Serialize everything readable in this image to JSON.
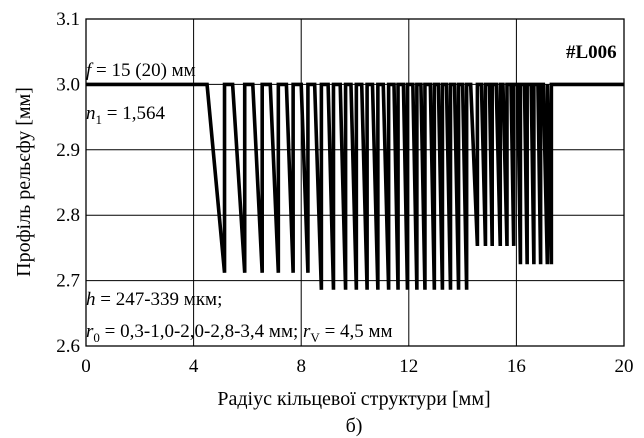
{
  "chart_data": {
    "type": "line",
    "xlabel": "Радіус кільцевої структури [мм]",
    "ylabel": "Профіль рельєфу [мм]",
    "caption": "б)",
    "xlim": [
      0,
      20
    ],
    "ylim": [
      2.6,
      3.1
    ],
    "xticks": [
      0,
      4,
      8,
      12,
      16,
      20
    ],
    "yticks": [
      2.6,
      2.7,
      2.8,
      2.9,
      3.0,
      3.1
    ],
    "ytick_labels": [
      "2.6",
      "2.7",
      "2.8",
      "2.9",
      "3.0",
      "3.1"
    ],
    "grid": true,
    "label_tag": "#L006",
    "annotations": {
      "focal": {
        "sym": "f",
        "text": " = 15 (20) мм"
      },
      "index": {
        "sym": "n",
        "sub": "1",
        "text": " = 1,564"
      },
      "height": {
        "sym": "h",
        "text": " = 247-339 мкм;"
      },
      "radii": {
        "sym": "r",
        "sub": "0",
        "text": " = 0,3-1,0-2,0-2,8-3,4 мм; ",
        "sym2": "r",
        "sub2": "V",
        "text2": " = 4,5 мм"
      }
    },
    "series": [
      {
        "x": [
          0,
          4.5,
          5.15,
          5.15,
          5.45,
          5.9,
          5.9,
          6.2,
          6.55,
          6.55,
          6.85,
          7.15,
          7.15,
          7.45,
          7.7,
          7.7,
          8.0,
          8.25,
          8.25,
          8.5,
          8.75,
          8.75,
          9.0,
          9.2,
          9.2,
          9.45,
          9.65,
          9.65,
          9.85,
          10.05,
          10.05,
          10.25,
          10.45,
          10.45,
          10.65,
          10.85,
          10.85,
          11.05,
          11.25,
          11.25,
          11.45,
          11.6,
          11.6,
          11.8,
          11.95,
          11.95,
          12.15,
          12.3,
          12.3,
          12.45,
          12.6,
          12.6,
          12.8,
          12.95,
          12.95,
          13.1,
          13.25,
          13.25,
          13.4,
          13.55,
          13.55,
          13.7,
          13.85,
          13.85,
          14.0,
          14.15,
          14.15,
          14.3,
          14.55,
          14.55,
          14.7,
          14.85,
          14.85,
          15.0,
          15.1,
          15.1,
          15.25,
          15.4,
          15.4,
          15.5,
          15.65,
          15.65,
          15.8,
          15.9,
          15.9,
          16.05,
          16.15,
          16.15,
          16.3,
          16.4,
          16.4,
          16.55,
          16.65,
          16.65,
          16.8,
          16.9,
          16.9,
          17.0,
          17.15,
          17.15,
          17.3,
          17.3,
          20
        ],
        "y": [
          3.0,
          3.0,
          2.712,
          3.0,
          3.0,
          2.712,
          3.0,
          3.0,
          2.712,
          3.0,
          3.0,
          2.712,
          3.0,
          3.0,
          2.712,
          3.0,
          3.0,
          2.712,
          3.0,
          3.0,
          2.686,
          3.0,
          3.0,
          2.686,
          3.0,
          3.0,
          2.686,
          3.0,
          3.0,
          2.686,
          3.0,
          3.0,
          2.686,
          3.0,
          3.0,
          2.686,
          3.0,
          3.0,
          2.686,
          3.0,
          3.0,
          2.686,
          3.0,
          3.0,
          2.686,
          3.0,
          3.0,
          2.686,
          3.0,
          3.0,
          2.686,
          3.0,
          3.0,
          2.686,
          3.0,
          3.0,
          2.686,
          3.0,
          3.0,
          2.686,
          3.0,
          3.0,
          2.686,
          3.0,
          3.0,
          2.686,
          3.0,
          3.0,
          2.753,
          3.0,
          3.0,
          2.753,
          3.0,
          3.0,
          2.753,
          3.0,
          3.0,
          2.753,
          3.0,
          3.0,
          2.753,
          3.0,
          3.0,
          2.753,
          3.0,
          3.0,
          2.725,
          3.0,
          3.0,
          2.725,
          3.0,
          3.0,
          2.725,
          3.0,
          3.0,
          2.725,
          3.0,
          3.0,
          2.725,
          3.0,
          2.725,
          3.0,
          3.0
        ]
      }
    ]
  }
}
